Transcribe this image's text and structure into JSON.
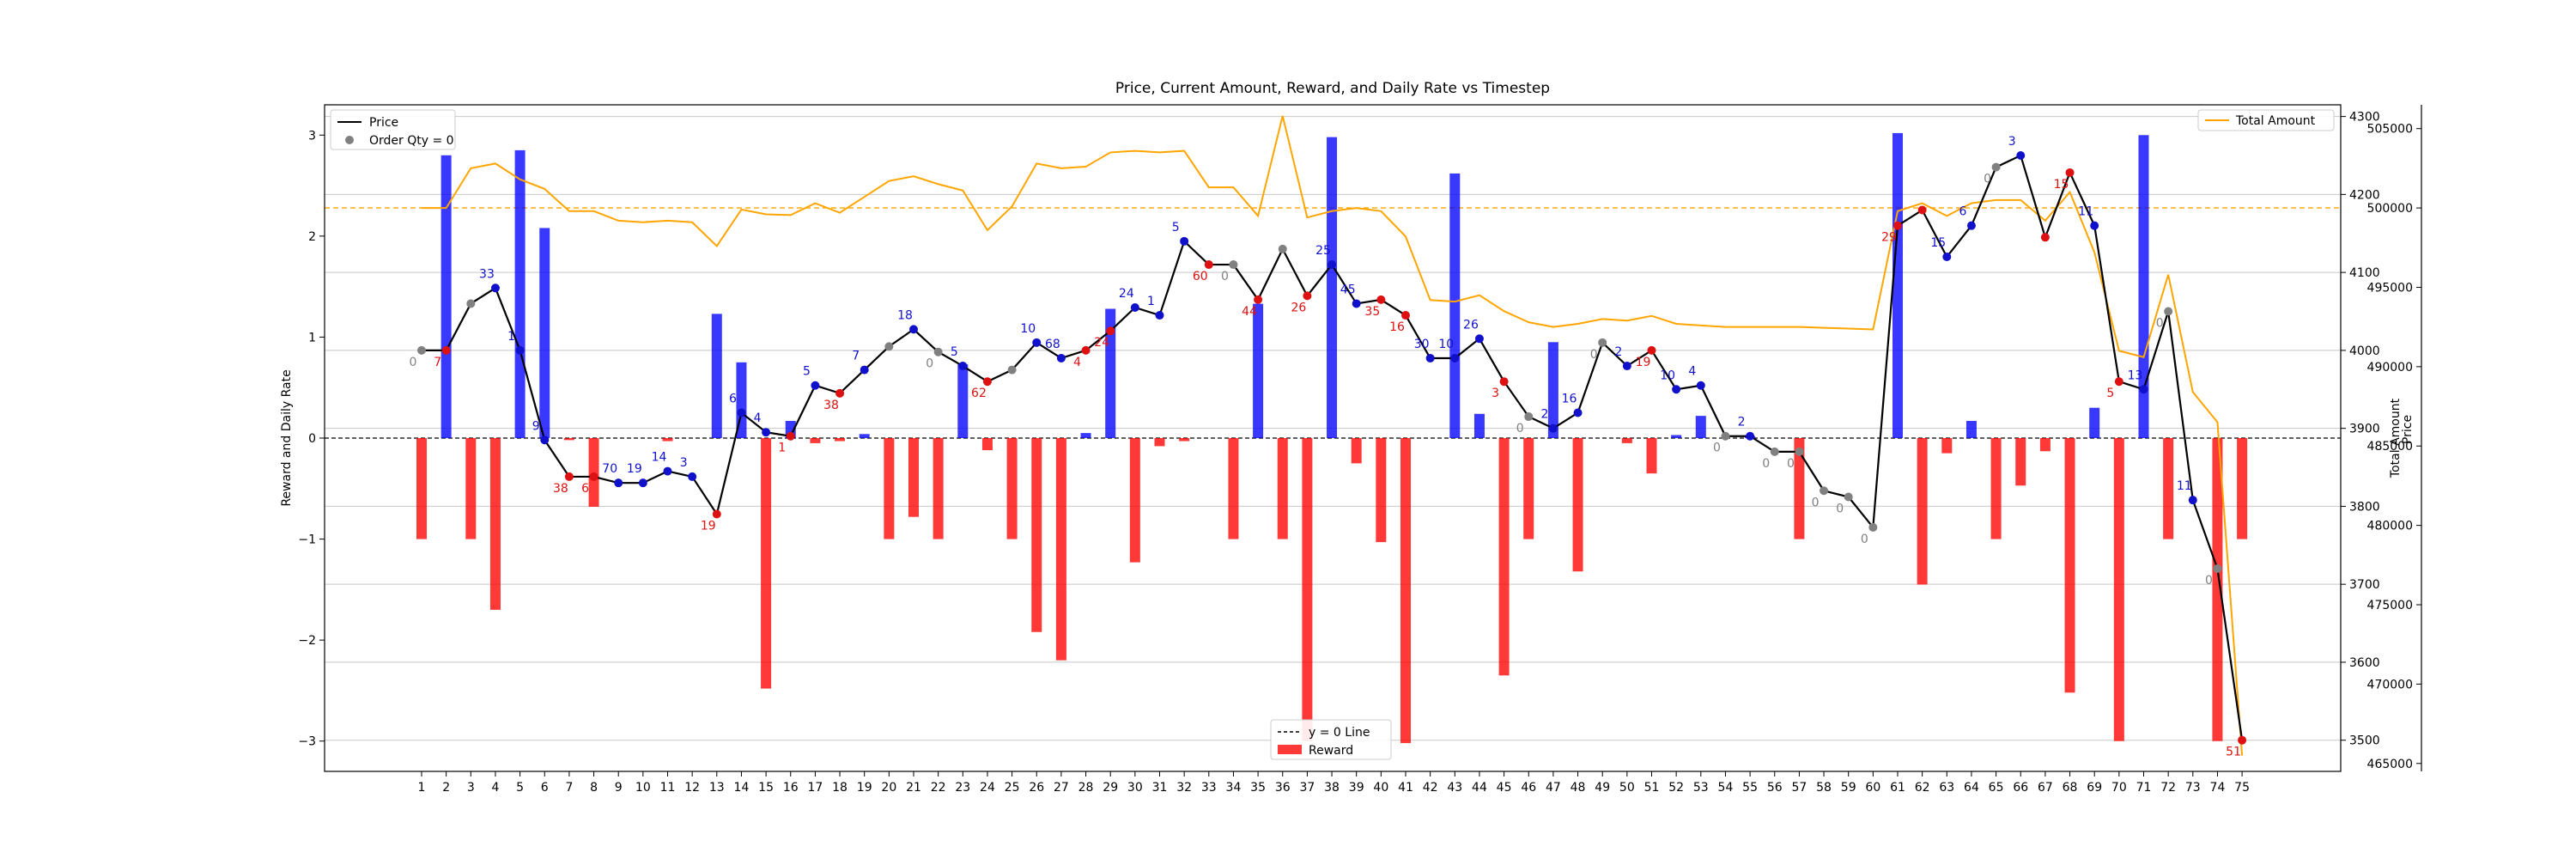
{
  "chart_data": {
    "type": "bar",
    "title": "Price, Current Amount, Reward, and Daily Rate vs Timestep",
    "x": [
      1,
      2,
      3,
      4,
      5,
      6,
      7,
      8,
      9,
      10,
      11,
      12,
      13,
      14,
      15,
      16,
      17,
      18,
      19,
      20,
      21,
      22,
      23,
      24,
      25,
      26,
      27,
      28,
      29,
      30,
      31,
      32,
      33,
      34,
      35,
      36,
      37,
      38,
      39,
      40,
      41,
      42,
      43,
      44,
      45,
      46,
      47,
      48,
      49,
      50,
      51,
      52,
      53,
      54,
      55,
      56,
      57,
      58,
      59,
      60,
      61,
      62,
      63,
      64,
      65,
      66,
      67,
      68,
      69,
      70,
      71,
      72,
      73,
      74,
      75
    ],
    "y_left": {
      "label": "Reward and Daily Rate",
      "ylim": [
        -3.3,
        3.3
      ],
      "ticks": [
        -3,
        -2,
        -1,
        0,
        1,
        2,
        3
      ]
    },
    "y_price": {
      "label": "Price",
      "ylim": [
        3460,
        4315
      ],
      "ticks": [
        3500,
        3600,
        3700,
        3800,
        3900,
        4000,
        4100,
        4200,
        4300
      ]
    },
    "y_amount": {
      "label": "Total Amount",
      "ylim": [
        464500,
        506500
      ],
      "ticks": [
        465000,
        470000,
        475000,
        480000,
        485000,
        490000,
        495000,
        500000,
        505000
      ]
    },
    "zero_line_label": "y = 0 Line",
    "legend_left": [
      {
        "label": "Price",
        "color": "#000000",
        "kind": "line"
      },
      {
        "label": "Order Qty = 0",
        "color": "#808080",
        "kind": "marker"
      }
    ],
    "legend_right": [
      {
        "label": "Total Amount",
        "color": "#ffa500",
        "kind": "line"
      }
    ],
    "legend_bottom": [
      {
        "label": "y = 0 Line",
        "color": "#000000",
        "kind": "dash"
      },
      {
        "label": "Reward",
        "color": "#ff0000",
        "kind": "patch"
      }
    ],
    "reward": [
      -1,
      0,
      -1,
      -1.7,
      0,
      0,
      -0.02,
      -0.68,
      0,
      0,
      -0.03,
      0,
      0,
      0,
      -2.48,
      0,
      -0.05,
      -0.03,
      0,
      -1,
      -0.78,
      -1,
      0,
      -0.12,
      -1,
      -1.92,
      -2.2,
      0,
      0,
      -1.23,
      -0.08,
      -0.03,
      0,
      -1,
      0,
      -1,
      -3,
      0,
      -0.25,
      -1.03,
      -3.02,
      0,
      0,
      0,
      -2.35,
      -1,
      0,
      -1.32,
      0,
      -0.05,
      -0.35,
      0,
      0,
      0,
      0,
      0,
      -1,
      0,
      0,
      0,
      0,
      -1.45,
      -0.15,
      0,
      -1,
      -0.47,
      -0.13,
      -2.52,
      0,
      -3,
      0,
      -1,
      0,
      -3,
      -1
    ],
    "daily_rate": [
      0,
      2.8,
      0,
      0,
      2.85,
      2.08,
      0,
      0,
      0,
      0,
      0,
      0,
      1.23,
      0.75,
      0,
      0.17,
      0,
      0,
      0.04,
      0,
      0,
      0,
      0.73,
      0,
      0,
      0,
      0,
      0.05,
      1.28,
      0,
      0,
      0,
      0,
      0,
      1.33,
      0,
      0,
      2.98,
      0,
      0,
      0,
      0,
      2.62,
      0.24,
      0,
      0,
      0.95,
      0,
      0,
      0,
      0,
      0.03,
      0.22,
      0,
      0.02,
      0,
      0,
      0,
      0,
      0,
      3.02,
      0,
      0,
      0.17,
      0,
      0,
      0,
      0,
      0.3,
      0,
      3,
      0,
      0,
      0,
      0
    ],
    "price": [
      4000,
      4000,
      4060,
      4080,
      4000,
      3885,
      3838,
      3838,
      3830,
      3830,
      3845,
      3838,
      3790,
      3920,
      3895,
      3890,
      3955,
      3945,
      3975,
      4005,
      4027,
      3998,
      3980,
      3960,
      3975,
      4010,
      3990,
      4000,
      4025,
      4055,
      4045,
      4140,
      4110,
      4110,
      4065,
      4130,
      4070,
      4110,
      4060,
      4065,
      4045,
      3990,
      3990,
      4015,
      3960,
      3915,
      3900,
      3920,
      4010,
      3980,
      4000,
      3950,
      3955,
      3890,
      3890,
      3870,
      3870,
      3820,
      3812,
      3773,
      4160,
      4180,
      4120,
      4160,
      4235,
      4250,
      4145,
      4228,
      4160,
      3960,
      3950,
      4050,
      3808,
      3720,
      3500
    ],
    "price_color": [
      "gray",
      "red",
      "gray",
      "blue",
      "blue",
      "blue",
      "red",
      "red",
      "blue",
      "blue",
      "blue",
      "blue",
      "red",
      "blue",
      "blue",
      "red",
      "blue",
      "red",
      "blue",
      "gray",
      "blue",
      "gray",
      "blue",
      "red",
      "gray",
      "blue",
      "blue",
      "red",
      "red",
      "blue",
      "blue",
      "blue",
      "red",
      "gray",
      "red",
      "gray",
      "red",
      "blue",
      "blue",
      "red",
      "red",
      "blue",
      "blue",
      "blue",
      "red",
      "gray",
      "blue",
      "blue",
      "gray",
      "blue",
      "red",
      "blue",
      "blue",
      "gray",
      "blue",
      "gray",
      "gray",
      "gray",
      "gray",
      "gray",
      "red",
      "red",
      "blue",
      "blue",
      "gray",
      "blue",
      "red",
      "red",
      "blue",
      "red",
      "blue",
      "gray",
      "blue",
      "gray",
      "red"
    ],
    "labels": [
      "0",
      "7",
      "",
      "33",
      "1",
      "9",
      "38",
      "6",
      "70",
      "19",
      "14",
      "3",
      "19",
      "6",
      "4",
      "1",
      "5",
      "38",
      "7",
      "",
      "18",
      "0",
      "5",
      "62",
      "",
      "10",
      "68",
      "4",
      "24",
      "24",
      "1",
      "5",
      "60",
      "0",
      "44",
      "",
      "26",
      "25",
      "45",
      "35",
      "16",
      "30",
      "10",
      "26",
      "3",
      "0",
      "2",
      "16",
      "0",
      "2",
      "19",
      "10",
      "4",
      "0",
      "2",
      "0",
      "0",
      "0",
      "0",
      "0",
      "29",
      "",
      "15",
      "6",
      "0",
      "3",
      "",
      "15",
      "11",
      "5",
      "13",
      "0",
      "11",
      "0",
      "51"
    ],
    "total_amount": [
      500000,
      500000,
      502500,
      502800,
      501800,
      501200,
      499800,
      499800,
      499200,
      499100,
      499200,
      499100,
      497600,
      499900,
      499600,
      499550,
      500300,
      499700,
      500700,
      501700,
      502000,
      501500,
      501100,
      498600,
      500100,
      502800,
      502500,
      502600,
      503500,
      503600,
      503500,
      503600,
      501300,
      501300,
      499500,
      505800,
      499400,
      499800,
      500000,
      499800,
      498200,
      494200,
      494100,
      494500,
      493500,
      492800,
      492500,
      492700,
      493000,
      492900,
      493200,
      492700,
      492600,
      492500,
      492500,
      492500,
      492500,
      492450,
      492400,
      492350,
      499800,
      500300,
      499500,
      500300,
      500500,
      500500,
      499200,
      501000,
      497200,
      491000,
      490600,
      495800,
      488400,
      486500,
      465500
    ],
    "threshold_amount": 500000,
    "grid": true
  },
  "colors": {
    "reward": "#ff0000",
    "daily_rate": "#0000ff",
    "price": "#000000",
    "amount": "#ffa500",
    "red": "#dd1111",
    "blue": "#1111cc",
    "gray": "#808080"
  }
}
